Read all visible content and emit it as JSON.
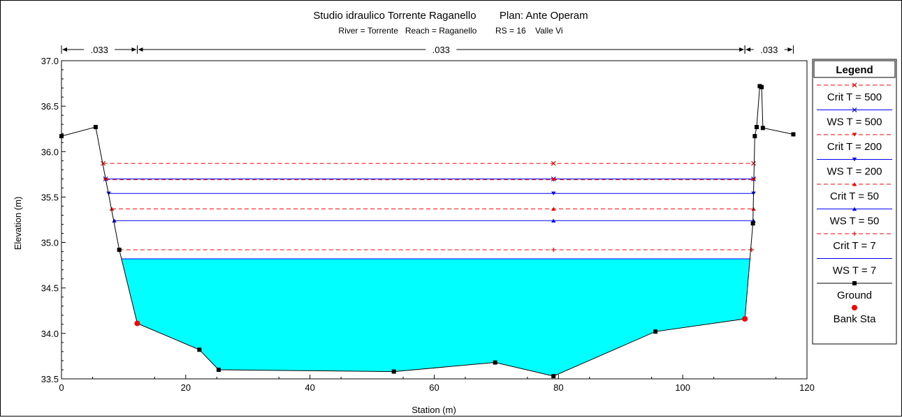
{
  "chart_data": {
    "type": "line",
    "title": "Studio idraulico Torrente Raganello        Plan: Ante Operam",
    "subtitle": "River = Torrente   Reach = Raganello        RS = 16    Valle Vi",
    "xlabel": "Station (m)",
    "ylabel": "Elevation (m)",
    "xlim": [
      0,
      120
    ],
    "ylim": [
      33.5,
      37.0
    ],
    "xticks": [
      0,
      20,
      40,
      60,
      80,
      100,
      120
    ],
    "yticks": [
      33.5,
      34.0,
      34.5,
      35.0,
      35.5,
      36.0,
      36.5,
      37.0
    ],
    "xtick_labels": [
      "0",
      "20",
      "40",
      "60",
      "80",
      "100",
      "120"
    ],
    "ytick_labels": [
      "33.5",
      "34.0",
      "34.5",
      "35.0",
      "35.5",
      "36.0",
      "36.5",
      "37.0"
    ],
    "grid": false,
    "legend_title": "Legend",
    "legend_position": "right",
    "manning": [
      {
        "label": ".033",
        "x_start": 0,
        "x_end": 12.2
      },
      {
        "label": ".033",
        "x_start": 12.2,
        "x_end": 110
      },
      {
        "label": ".033",
        "x_start": 110,
        "x_end": 117.8
      }
    ],
    "ground": {
      "name": "Ground",
      "color": "#000000",
      "points": [
        [
          0,
          36.17
        ],
        [
          5.5,
          36.27
        ],
        [
          9.3,
          34.92
        ],
        [
          12.2,
          34.11
        ],
        [
          22.2,
          33.82
        ],
        [
          25.3,
          33.6
        ],
        [
          53.5,
          33.58
        ],
        [
          69.8,
          33.68
        ],
        [
          79.2,
          33.53
        ],
        [
          95.6,
          34.02
        ],
        [
          110,
          34.16
        ],
        [
          111.3,
          35.21
        ],
        [
          111.6,
          36.17
        ],
        [
          111.9,
          36.27
        ],
        [
          112.4,
          36.72
        ],
        [
          112.7,
          36.71
        ],
        [
          112.9,
          36.26
        ],
        [
          117.8,
          36.19
        ]
      ]
    },
    "bank_stations": {
      "name": "Bank Sta",
      "color": "#ff0000",
      "points": [
        [
          12.2,
          34.11
        ],
        [
          110,
          34.16
        ]
      ]
    },
    "water_fill": {
      "elevation": 34.82,
      "color": "#00ffff"
    },
    "series": [
      {
        "name": "Crit  T = 500",
        "elevation": 35.87,
        "x_start": 6.7,
        "x_end": 111.4,
        "x_mid": 79.2,
        "color": "#ff0000",
        "dash": true,
        "marker": "x"
      },
      {
        "name": "WS  T = 500",
        "elevation": 35.7,
        "x_start": 7.1,
        "x_end": 111.4,
        "x_mid": 79.2,
        "color": "#0000ff",
        "dash": false,
        "marker": "x"
      },
      {
        "name": "Crit  T = 200",
        "elevation": 35.69,
        "x_start": 7.1,
        "x_end": 111.4,
        "x_mid": 79.2,
        "color": "#ff0000",
        "dash": true,
        "marker": "tri-down"
      },
      {
        "name": "WS  T = 200",
        "elevation": 35.54,
        "x_start": 7.6,
        "x_end": 111.4,
        "x_mid": 79.2,
        "color": "#0000ff",
        "dash": false,
        "marker": "tri-down"
      },
      {
        "name": "Crit  T = 50",
        "elevation": 35.37,
        "x_start": 8.1,
        "x_end": 111.4,
        "x_mid": 79.2,
        "color": "#ff0000",
        "dash": true,
        "marker": "tri-up"
      },
      {
        "name": "WS  T = 50",
        "elevation": 35.24,
        "x_start": 8.5,
        "x_end": 111.4,
        "x_mid": 79.2,
        "color": "#0000ff",
        "dash": false,
        "marker": "tri-up"
      },
      {
        "name": "Crit  T = 7",
        "elevation": 34.92,
        "x_start": 9.3,
        "x_end": 111.1,
        "x_mid": 79.2,
        "color": "#ff0000",
        "dash": true,
        "marker": "plus"
      },
      {
        "name": "WS  T = 7",
        "elevation": 34.82,
        "x_start": 9.6,
        "x_end": 110.9,
        "x_mid": 79.2,
        "color": "#0000ff",
        "dash": false,
        "marker": "none"
      }
    ]
  }
}
